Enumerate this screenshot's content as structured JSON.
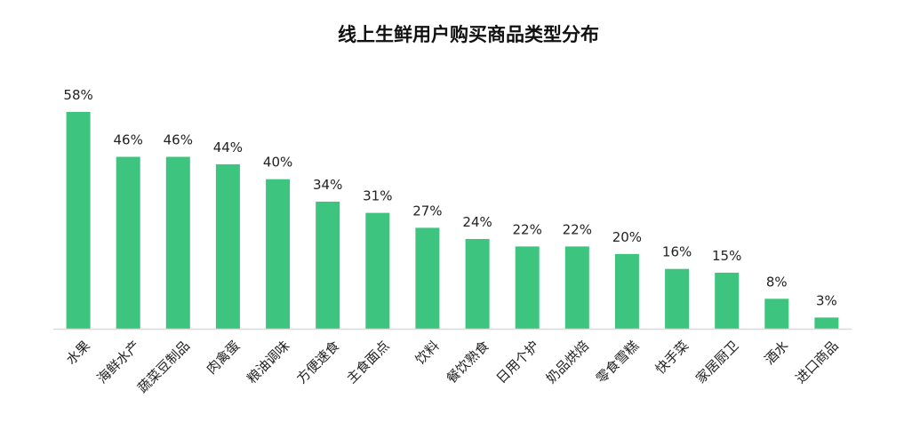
{
  "colors": {
    "bar": "#3dc47e",
    "axis": "#d9d9d9",
    "text": "#222222",
    "background": "#ffffff"
  },
  "chart_data": {
    "type": "bar",
    "title": "线上生鲜用户购买商品类型分布",
    "xlabel": "",
    "ylabel": "",
    "ylim": [
      0,
      60
    ],
    "grid": false,
    "legend": "none",
    "categories": [
      "水果",
      "海鲜水产",
      "蔬菜豆制品",
      "肉禽蛋",
      "粮油调味",
      "方便速食",
      "主食面点",
      "饮料",
      "餐饮熟食",
      "日用个护",
      "奶品烘焙",
      "零食雪糕",
      "快手菜",
      "家居厨卫",
      "酒水",
      "进口商品"
    ],
    "values": [
      58,
      46,
      46,
      44,
      40,
      34,
      31,
      27,
      24,
      22,
      22,
      20,
      16,
      15,
      8,
      3
    ],
    "value_labels": [
      "58%",
      "46%",
      "46%",
      "44%",
      "40%",
      "34%",
      "31%",
      "27%",
      "24%",
      "22%",
      "22%",
      "20%",
      "16%",
      "15%",
      "8%",
      "3%"
    ]
  }
}
